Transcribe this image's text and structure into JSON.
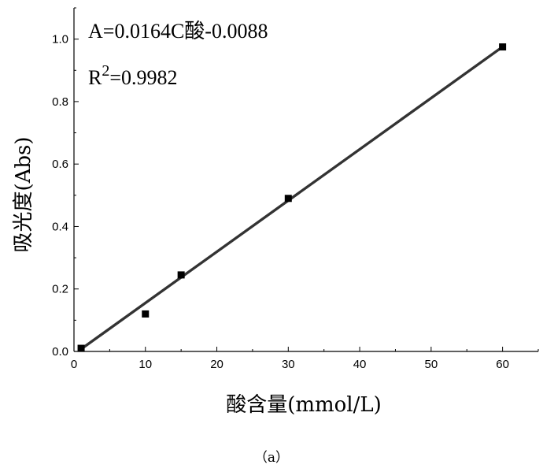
{
  "chart_data": {
    "type": "scatter",
    "xlabel": "酸含量(mmol/L)",
    "ylabel": "吸光度(Abs)",
    "xlim": [
      0,
      65
    ],
    "ylim": [
      0,
      1.1
    ],
    "x_ticks": [
      0,
      10,
      20,
      30,
      40,
      50,
      60
    ],
    "y_ticks": [
      0.0,
      0.2,
      0.4,
      0.6,
      0.8,
      1.0
    ],
    "x_tick_labels": [
      "0",
      "10",
      "20",
      "30",
      "40",
      "50",
      "60"
    ],
    "y_tick_labels": [
      "0.0",
      "0.2",
      "0.4",
      "0.6",
      "0.8",
      "1.0"
    ],
    "series": [
      {
        "x": [
          1,
          10,
          15,
          30,
          60
        ],
        "y": [
          0.01,
          0.12,
          0.245,
          0.49,
          0.975
        ],
        "marker": "square",
        "color": "#000000"
      }
    ],
    "fit_line": {
      "slope": 0.0164,
      "intercept": -0.0088,
      "x_range": [
        1,
        60
      ],
      "color": "#333333"
    },
    "equation": "A=0.0164C酸-0.0088",
    "r2_prefix": "R",
    "r2_sup": "2",
    "r2_value": "=0.9982",
    "grid": false,
    "legend": "none"
  },
  "caption": "（a）"
}
